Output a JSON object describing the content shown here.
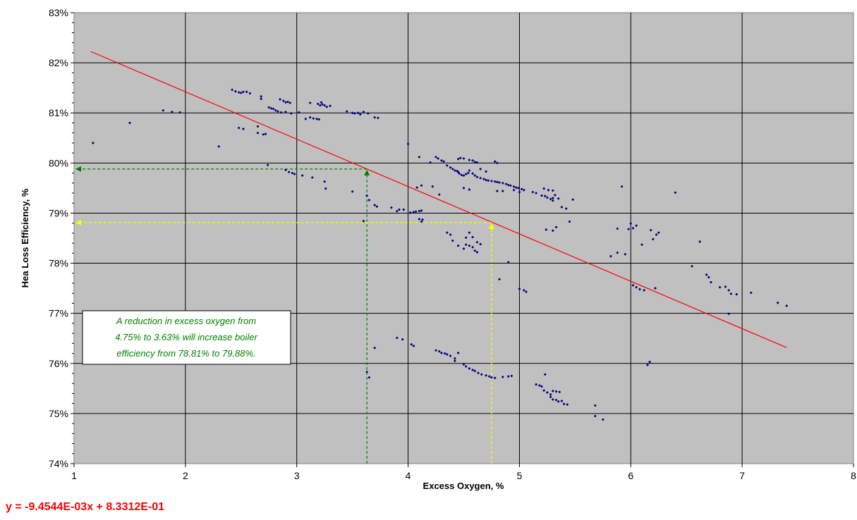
{
  "chart_data": {
    "type": "scatter",
    "xlabel": "Excess Oxygen, %",
    "ylabel": "Hea Loss Efficiency, %",
    "xlim": [
      1,
      8
    ],
    "ylim": [
      0.74,
      0.83
    ],
    "x_ticks": [
      "1",
      "2",
      "3",
      "4",
      "5",
      "6",
      "7",
      "8"
    ],
    "y_ticks": [
      "74%",
      "75%",
      "76%",
      "77%",
      "78%",
      "79%",
      "80%",
      "81%",
      "82%",
      "83%"
    ],
    "grid": true,
    "trendline": {
      "slope": -0.0094544,
      "intercept": 0.83312,
      "x_range": [
        1.15,
        7.4
      ]
    },
    "equation_label": "y = -9.4544E-03x + 8.3312E-01",
    "annotation_lines": [
      "A reduction in excess oxygen from",
      "4.75% to 3.63% will increase boiler",
      "efficiency from 78.81% to 79.88%."
    ],
    "markers": [
      {
        "x": 3.63,
        "y": 0.7988,
        "color": "#008000"
      },
      {
        "x": 4.75,
        "y": 0.7881,
        "color": "#ffff00"
      }
    ],
    "series": [
      {
        "points": [
          [
            1.17,
            0.804
          ],
          [
            1.5,
            0.808
          ],
          [
            1.8,
            0.8105
          ],
          [
            1.88,
            0.8102
          ],
          [
            1.95,
            0.8101
          ],
          [
            2.3,
            0.8033
          ],
          [
            2.42,
            0.8146
          ],
          [
            2.45,
            0.8143
          ],
          [
            2.48,
            0.8141
          ],
          [
            2.5,
            0.814
          ],
          [
            2.52,
            0.8142
          ],
          [
            2.55,
            0.8142
          ],
          [
            2.58,
            0.8139
          ],
          [
            2.48,
            0.807
          ],
          [
            2.52,
            0.8068
          ],
          [
            2.65,
            0.806
          ],
          [
            2.65,
            0.8073
          ],
          [
            2.7,
            0.8057
          ],
          [
            2.72,
            0.8058
          ],
          [
            2.68,
            0.8133
          ],
          [
            2.68,
            0.8128
          ],
          [
            2.74,
            0.7996
          ],
          [
            2.75,
            0.8111
          ],
          [
            2.77,
            0.8109
          ],
          [
            2.79,
            0.8108
          ],
          [
            2.81,
            0.8105
          ],
          [
            2.83,
            0.8103
          ],
          [
            2.86,
            0.8101
          ],
          [
            2.9,
            0.8102
          ],
          [
            2.95,
            0.8099
          ],
          [
            2.85,
            0.8127
          ],
          [
            2.88,
            0.8124
          ],
          [
            2.9,
            0.8121
          ],
          [
            2.92,
            0.8122
          ],
          [
            2.94,
            0.812
          ],
          [
            2.9,
            0.7986
          ],
          [
            2.93,
            0.7982
          ],
          [
            2.96,
            0.798
          ],
          [
            2.98,
            0.7978
          ],
          [
            3.05,
            0.7975
          ],
          [
            3.14,
            0.7971
          ],
          [
            3.25,
            0.7963
          ],
          [
            3.26,
            0.7949
          ],
          [
            3.5,
            0.7943
          ],
          [
            3.02,
            0.8101
          ],
          [
            3.08,
            0.8088
          ],
          [
            3.12,
            0.8091
          ],
          [
            3.15,
            0.8089
          ],
          [
            3.18,
            0.8088
          ],
          [
            3.2,
            0.8087
          ],
          [
            3.12,
            0.812
          ],
          [
            3.19,
            0.8118
          ],
          [
            3.21,
            0.8115
          ],
          [
            3.23,
            0.8117
          ],
          [
            3.25,
            0.8115
          ],
          [
            3.27,
            0.8112
          ],
          [
            3.3,
            0.8114
          ],
          [
            3.22,
            0.8121
          ],
          [
            3.45,
            0.8103
          ],
          [
            3.5,
            0.81
          ],
          [
            3.52,
            0.8099
          ],
          [
            3.55,
            0.81
          ],
          [
            3.57,
            0.8097
          ],
          [
            3.6,
            0.8102
          ],
          [
            3.64,
            0.8099
          ],
          [
            3.7,
            0.8091
          ],
          [
            3.73,
            0.809
          ],
          [
            3.63,
            0.7935
          ],
          [
            3.65,
            0.7926
          ],
          [
            3.6,
            0.7884
          ],
          [
            3.63,
            0.7583
          ],
          [
            3.65,
            0.7572
          ],
          [
            3.7,
            0.7631
          ],
          [
            3.7,
            0.7916
          ],
          [
            3.72,
            0.7913
          ],
          [
            3.85,
            0.7911
          ],
          [
            3.9,
            0.7904
          ],
          [
            3.92,
            0.7907
          ],
          [
            3.96,
            0.7907
          ],
          [
            4.0,
            0.8038
          ],
          [
            4.02,
            0.7901
          ],
          [
            4.05,
            0.7902
          ],
          [
            4.07,
            0.7903
          ],
          [
            4.1,
            0.7904
          ],
          [
            4.12,
            0.7905
          ],
          [
            4.1,
            0.7888
          ],
          [
            4.12,
            0.7883
          ],
          [
            4.13,
            0.7887
          ],
          [
            4.08,
            0.7951
          ],
          [
            4.12,
            0.7955
          ],
          [
            4.1,
            0.8012
          ],
          [
            4.2,
            0.8001
          ],
          [
            4.22,
            0.7953
          ],
          [
            4.28,
            0.7937
          ],
          [
            4.25,
            0.8012
          ],
          [
            4.27,
            0.8009
          ],
          [
            4.3,
            0.8005
          ],
          [
            4.32,
            0.8003
          ],
          [
            4.35,
            0.7995
          ],
          [
            4.38,
            0.7991
          ],
          [
            4.4,
            0.7988
          ],
          [
            4.42,
            0.7985
          ],
          [
            4.44,
            0.7984
          ],
          [
            4.45,
            0.7982
          ],
          [
            4.46,
            0.7979
          ],
          [
            4.48,
            0.7976
          ],
          [
            4.5,
            0.7975
          ],
          [
            4.52,
            0.7978
          ],
          [
            4.54,
            0.798
          ],
          [
            4.55,
            0.7985
          ],
          [
            4.58,
            0.7979
          ],
          [
            4.6,
            0.7975
          ],
          [
            4.62,
            0.7972
          ],
          [
            4.65,
            0.797
          ],
          [
            4.45,
            0.8008
          ],
          [
            4.47,
            0.801
          ],
          [
            4.5,
            0.8009
          ],
          [
            4.55,
            0.8006
          ],
          [
            4.58,
            0.8005
          ],
          [
            4.6,
            0.8002
          ],
          [
            4.62,
            0.8001
          ],
          [
            4.68,
            0.7968
          ],
          [
            4.7,
            0.7966
          ],
          [
            4.72,
            0.7965
          ],
          [
            4.75,
            0.7964
          ],
          [
            4.78,
            0.7963
          ],
          [
            4.8,
            0.7962
          ],
          [
            4.82,
            0.7961
          ],
          [
            4.85,
            0.796
          ],
          [
            4.88,
            0.7958
          ],
          [
            4.9,
            0.7956
          ],
          [
            4.92,
            0.7955
          ],
          [
            4.95,
            0.7953
          ],
          [
            4.97,
            0.7951
          ],
          [
            4.99,
            0.795
          ],
          [
            5.02,
            0.7948
          ],
          [
            5.04,
            0.7946
          ],
          [
            5.0,
            0.7942
          ],
          [
            4.95,
            0.7946
          ],
          [
            4.78,
            0.8003
          ],
          [
            4.8,
            0.8
          ],
          [
            4.65,
            0.7988
          ],
          [
            4.7,
            0.7983
          ],
          [
            4.5,
            0.795
          ],
          [
            4.55,
            0.7947
          ],
          [
            4.85,
            0.7944
          ],
          [
            4.8,
            0.7944
          ],
          [
            5.12,
            0.7942
          ],
          [
            5.15,
            0.794
          ],
          [
            5.2,
            0.7935
          ],
          [
            5.23,
            0.7934
          ],
          [
            5.25,
            0.7931
          ],
          [
            5.28,
            0.7928
          ],
          [
            5.3,
            0.793
          ],
          [
            5.32,
            0.7936
          ],
          [
            5.35,
            0.7929
          ],
          [
            5.3,
            0.7925
          ],
          [
            5.38,
            0.7912
          ],
          [
            5.42,
            0.7909
          ],
          [
            5.48,
            0.7927
          ],
          [
            5.22,
            0.7949
          ],
          [
            5.26,
            0.7946
          ],
          [
            5.3,
            0.7945
          ],
          [
            5.24,
            0.7867
          ],
          [
            5.3,
            0.7865
          ],
          [
            5.33,
            0.7872
          ],
          [
            5.45,
            0.7883
          ],
          [
            4.35,
            0.7861
          ],
          [
            4.38,
            0.7857
          ],
          [
            4.4,
            0.7845
          ],
          [
            4.45,
            0.7835
          ],
          [
            4.5,
            0.7829
          ],
          [
            4.52,
            0.7837
          ],
          [
            4.55,
            0.7835
          ],
          [
            4.58,
            0.7832
          ],
          [
            4.6,
            0.7825
          ],
          [
            4.62,
            0.7822
          ],
          [
            4.52,
            0.7851
          ],
          [
            4.58,
            0.7852
          ],
          [
            4.55,
            0.7861
          ],
          [
            4.62,
            0.7842
          ],
          [
            4.65,
            0.7838
          ],
          [
            4.82,
            0.7768
          ],
          [
            4.9,
            0.7802
          ],
          [
            5.0,
            0.7749
          ],
          [
            5.04,
            0.7746
          ],
          [
            5.06,
            0.7743
          ],
          [
            3.9,
            0.7651
          ],
          [
            3.95,
            0.7648
          ],
          [
            4.03,
            0.7638
          ],
          [
            4.05,
            0.7635
          ],
          [
            4.25,
            0.7626
          ],
          [
            4.28,
            0.7624
          ],
          [
            4.3,
            0.7621
          ],
          [
            4.33,
            0.762
          ],
          [
            4.35,
            0.7618
          ],
          [
            4.38,
            0.7615
          ],
          [
            4.42,
            0.761
          ],
          [
            4.45,
            0.7621
          ],
          [
            4.42,
            0.7605
          ],
          [
            4.5,
            0.7598
          ],
          [
            4.52,
            0.7594
          ],
          [
            4.55,
            0.759
          ],
          [
            4.58,
            0.7587
          ],
          [
            4.6,
            0.7585
          ],
          [
            4.63,
            0.7581
          ],
          [
            4.66,
            0.7578
          ],
          [
            4.7,
            0.7576
          ],
          [
            4.73,
            0.7574
          ],
          [
            4.75,
            0.7572
          ],
          [
            4.78,
            0.7571
          ],
          [
            4.85,
            0.7573
          ],
          [
            4.9,
            0.7574
          ],
          [
            4.93,
            0.7575
          ],
          [
            5.15,
            0.7558
          ],
          [
            5.18,
            0.7556
          ],
          [
            5.2,
            0.7554
          ],
          [
            5.23,
            0.7578
          ],
          [
            5.22,
            0.7546
          ],
          [
            5.25,
            0.7542
          ],
          [
            5.28,
            0.7538
          ],
          [
            5.3,
            0.7545
          ],
          [
            5.33,
            0.7544
          ],
          [
            5.36,
            0.7543
          ],
          [
            5.28,
            0.7533
          ],
          [
            5.3,
            0.7528
          ],
          [
            5.33,
            0.7527
          ],
          [
            5.35,
            0.7524
          ],
          [
            5.38,
            0.7525
          ],
          [
            5.4,
            0.7519
          ],
          [
            5.43,
            0.7518
          ],
          [
            5.68,
            0.7516
          ],
          [
            5.68,
            0.7495
          ],
          [
            5.75,
            0.7488
          ],
          [
            5.82,
            0.7814
          ],
          [
            5.88,
            0.7869
          ],
          [
            5.88,
            0.7821
          ],
          [
            5.92,
            0.7953
          ],
          [
            5.95,
            0.7818
          ],
          [
            5.98,
            0.7868
          ],
          [
            6.0,
            0.7879
          ],
          [
            6.02,
            0.787
          ],
          [
            6.05,
            0.7875
          ],
          [
            6.02,
            0.7756
          ],
          [
            6.05,
            0.7752
          ],
          [
            6.08,
            0.7748
          ],
          [
            6.12,
            0.7746
          ],
          [
            6.1,
            0.7837
          ],
          [
            6.18,
            0.7866
          ],
          [
            6.2,
            0.7848
          ],
          [
            6.23,
            0.7857
          ],
          [
            6.25,
            0.7861
          ],
          [
            6.22,
            0.775
          ],
          [
            6.15,
            0.7597
          ],
          [
            6.17,
            0.7603
          ],
          [
            6.4,
            0.7941
          ],
          [
            6.55,
            0.7794
          ],
          [
            6.62,
            0.7843
          ],
          [
            6.68,
            0.7777
          ],
          [
            6.7,
            0.7772
          ],
          [
            6.72,
            0.7762
          ],
          [
            6.8,
            0.7752
          ],
          [
            6.85,
            0.7753
          ],
          [
            6.88,
            0.7746
          ],
          [
            6.9,
            0.7739
          ],
          [
            6.95,
            0.7738
          ],
          [
            6.88,
            0.7699
          ],
          [
            7.08,
            0.7741
          ],
          [
            7.32,
            0.7721
          ],
          [
            7.4,
            0.7715
          ]
        ]
      }
    ]
  }
}
